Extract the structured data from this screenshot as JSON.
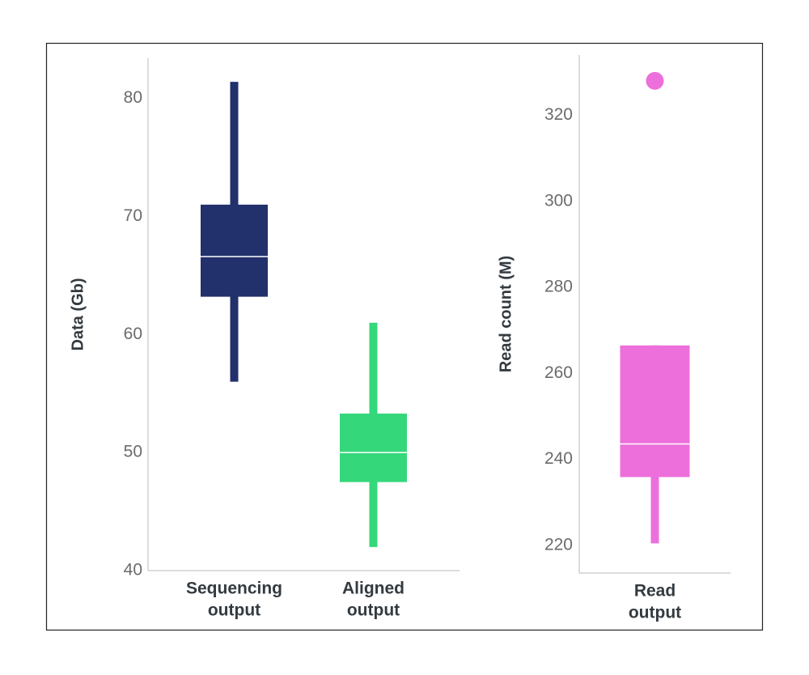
{
  "chart_data": [
    {
      "type": "box",
      "ylabel": "Data (Gb)",
      "categories": [
        [
          "Sequencing",
          "output"
        ],
        [
          "Aligned",
          "output"
        ]
      ],
      "boxes": [
        {
          "color": "#22306b",
          "whisker_low": 56.0,
          "q1": 63.2,
          "median": 66.6,
          "q3": 71.0,
          "whisker_high": 81.4,
          "outliers": []
        },
        {
          "color": "#34d77a",
          "whisker_low": 42.0,
          "q1": 47.5,
          "median": 50.0,
          "q3": 53.3,
          "whisker_high": 61.0,
          "outliers": []
        }
      ],
      "ylim": [
        40,
        83.4
      ],
      "yticks": [
        40,
        50,
        60,
        70,
        80
      ],
      "grid": false
    },
    {
      "type": "box",
      "ylabel": "Read count (M)",
      "categories": [
        [
          "Read",
          "output"
        ]
      ],
      "boxes": [
        {
          "color": "#ec6fdc",
          "whisker_low": 220.5,
          "q1": 235.9,
          "median": 243.6,
          "q3": 266.5,
          "whisker_high": 266.5,
          "outliers": [
            328
          ]
        }
      ],
      "ylim": [
        213.6,
        334
      ],
      "yticks": [
        220,
        240,
        260,
        280,
        300,
        320
      ],
      "grid": false
    }
  ]
}
